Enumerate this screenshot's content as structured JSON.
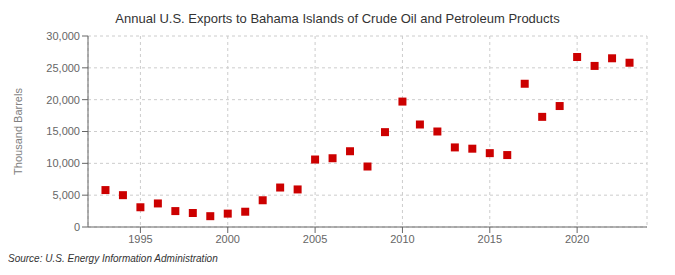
{
  "chart_data": {
    "type": "scatter",
    "title": "Annual U.S. Exports to Bahama Islands of Crude Oil and Petroleum Products",
    "ylabel": "Thousand Barrels",
    "annotations": [
      "Source: U.S. Energy Information Administration"
    ],
    "x": [
      1993,
      1994,
      1995,
      1996,
      1997,
      1998,
      1999,
      2000,
      2001,
      2002,
      2003,
      2004,
      2005,
      2006,
      2007,
      2008,
      2009,
      2010,
      2011,
      2012,
      2013,
      2014,
      2015,
      2016,
      2017,
      2018,
      2019,
      2020,
      2021,
      2022,
      2023
    ],
    "values": [
      5800,
      5000,
      3100,
      3700,
      2500,
      2200,
      1700,
      2100,
      2400,
      4200,
      6200,
      5900,
      10600,
      10800,
      11900,
      9500,
      14900,
      19700,
      16100,
      15000,
      12500,
      12300,
      11600,
      11300,
      22500,
      17300,
      19000,
      26700,
      25300,
      26500,
      25800
    ],
    "color": "#cc0000",
    "marker": "square",
    "xlim": [
      1992,
      2024
    ],
    "ylim": [
      0,
      30000
    ],
    "xticks": [
      1995,
      2000,
      2005,
      2010,
      2015,
      2020
    ],
    "yticks": [
      0,
      {
        "value": 5000,
        "label": "5,000"
      },
      {
        "value": 10000,
        "label": "10,000"
      },
      {
        "value": 15000,
        "label": "15,000"
      },
      {
        "value": 20000,
        "label": "20,000"
      },
      {
        "value": 25000,
        "label": "25,000"
      },
      {
        "value": 30000,
        "label": "30,000"
      }
    ],
    "grid": true
  }
}
